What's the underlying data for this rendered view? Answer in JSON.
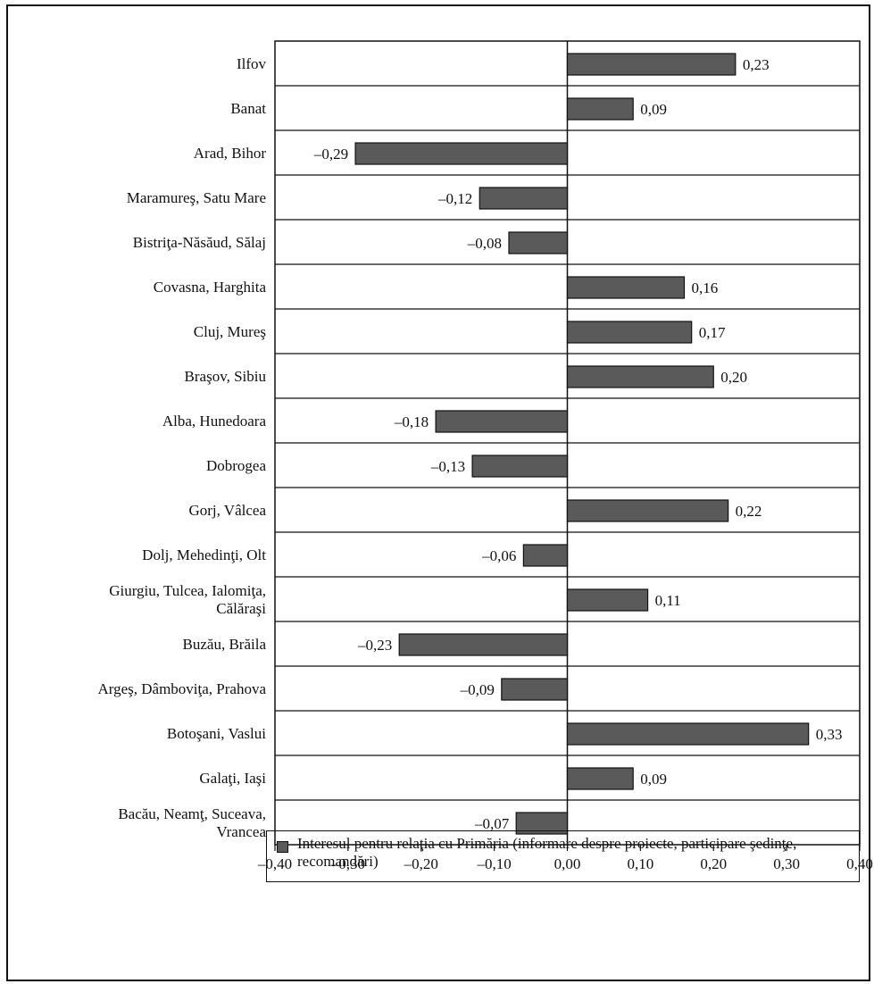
{
  "chart_data": {
    "type": "bar",
    "orientation": "horizontal",
    "categories": [
      "Ilfov",
      "Banat",
      "Arad, Bihor",
      "Maramureş, Satu Mare",
      "Bistriţa-Năsăud, Sălaj",
      "Covasna, Harghita",
      "Cluj, Mureş",
      "Braşov, Sibiu",
      "Alba, Hunedoara",
      "Dobrogea",
      "Gorj, Vâlcea",
      "Dolj, Mehedinţi, Olt",
      "Giurgiu, Tulcea, Ialomiţa,\nCălăraşi",
      "Buzău, Brăila",
      "Argeş, Dâmboviţa, Prahova",
      "Botoşani, Vaslui",
      "Galaţi, Iaşi",
      "Bacău, Neamţ, Suceava,\nVrancea"
    ],
    "series": [
      {
        "name": "Interesul pentru relaţia cu Primăria (informare despre proiecte, participare şedinţe, recomandări)",
        "values": [
          0.23,
          0.09,
          -0.29,
          -0.12,
          -0.08,
          0.16,
          0.17,
          0.2,
          -0.18,
          -0.13,
          0.22,
          -0.06,
          0.11,
          -0.23,
          -0.09,
          0.33,
          0.09,
          -0.07
        ],
        "labels": [
          "0,23",
          "0,09",
          "–0,29",
          "–0,12",
          "–0,08",
          "0,16",
          "0,17",
          "0,20",
          "–0,18",
          "–0,13",
          "0,22",
          "–0,06",
          "0,11",
          "–0,23",
          "–0,09",
          "0,33",
          "0,09",
          "–0,07"
        ],
        "color": "#5a5a5a"
      }
    ],
    "xlim": [
      -0.4,
      0.4
    ],
    "xticks": [
      -0.4,
      -0.3,
      -0.2,
      -0.1,
      0.0,
      0.1,
      0.2,
      0.3,
      0.4
    ],
    "xtick_labels": [
      "–0,40",
      "–0,30",
      "–0,20",
      "–0,10",
      "0,00",
      "0,10",
      "0,20",
      "0,30",
      "0,40"
    ],
    "grid": "horizontal row separators",
    "legend_position": "bottom",
    "title": "",
    "xlabel": "",
    "ylabel": ""
  },
  "legend": {
    "label": "Interesul pentru relaţia cu Primăria (informare despre proiecte, participare şedinţe, recomandări)",
    "swatch_color": "#5a5a5a"
  }
}
